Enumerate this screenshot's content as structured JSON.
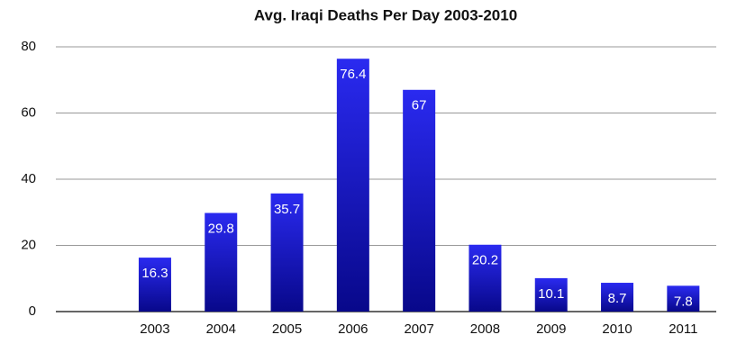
{
  "chart_data": {
    "type": "bar",
    "title": "Avg. Iraqi Deaths Per Day 2003-2010",
    "categories": [
      null,
      "2003",
      "2004",
      "2005",
      "2006",
      "2007",
      "2008",
      "2009",
      "2010",
      "2011"
    ],
    "values": [
      null,
      16.3,
      29.8,
      35.7,
      76.4,
      67,
      20.2,
      10.1,
      8.7,
      7.8
    ],
    "color": "#2a2af0",
    "ylim": [
      0,
      80
    ],
    "yticks": [
      0,
      20,
      40,
      60,
      80
    ],
    "grid": true
  }
}
